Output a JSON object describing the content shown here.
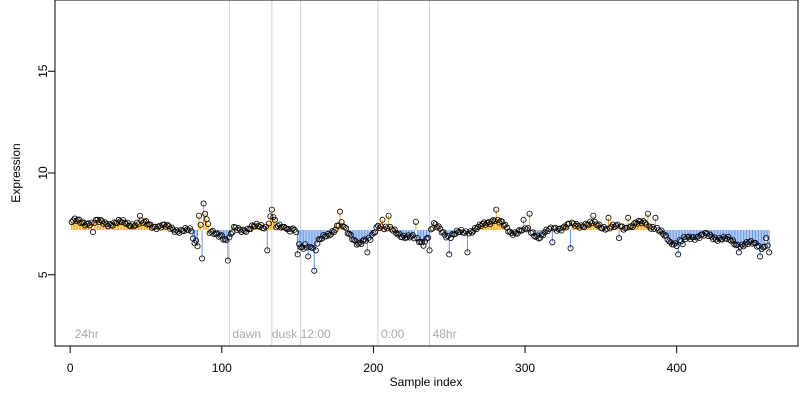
{
  "chart_data": {
    "type": "scatter",
    "title": "",
    "xlabel": "Sample index",
    "ylabel": "Expression",
    "xlim": [
      -10,
      480
    ],
    "ylim": [
      1.5,
      18.5
    ],
    "x_ticks": [
      0,
      100,
      200,
      300,
      400
    ],
    "y_ticks": [
      5,
      10,
      15
    ],
    "baseline": 7.2,
    "colors": {
      "point_stroke": "#000000",
      "point_fill": "#ffffff",
      "above_baseline": "#ffa500",
      "below_baseline": "#6495ed",
      "phase_line": "#d3d3d3",
      "phase_label": "#a9a9a9"
    },
    "phase_lines": [
      105,
      133,
      152,
      203,
      237
    ],
    "phase_labels": [
      {
        "x": 3,
        "text": "24hr"
      },
      {
        "x": 107,
        "text": "dawn"
      },
      {
        "x": 133,
        "text": "dusk"
      },
      {
        "x": 152,
        "text": "12:00"
      },
      {
        "x": 205,
        "text": "0:00"
      },
      {
        "x": 239,
        "text": "48hr"
      }
    ],
    "control_points": [
      [
        0,
        7.6
      ],
      [
        50,
        7.5
      ],
      [
        80,
        7.1
      ],
      [
        82,
        6.5
      ],
      [
        86,
        7.6
      ],
      [
        88,
        8.4
      ],
      [
        92,
        7.0
      ],
      [
        100,
        7.0
      ],
      [
        104,
        6.6
      ],
      [
        108,
        7.2
      ],
      [
        120,
        7.3
      ],
      [
        130,
        7.4
      ],
      [
        133,
        8.1
      ],
      [
        136,
        7.3
      ],
      [
        148,
        7.3
      ],
      [
        152,
        6.2
      ],
      [
        158,
        6.4
      ],
      [
        163,
        6.6
      ],
      [
        170,
        6.9
      ],
      [
        178,
        7.6
      ],
      [
        183,
        7.0
      ],
      [
        190,
        6.6
      ],
      [
        198,
        6.7
      ],
      [
        203,
        7.5
      ],
      [
        210,
        7.2
      ],
      [
        218,
        7.0
      ],
      [
        225,
        6.8
      ],
      [
        233,
        6.6
      ],
      [
        240,
        7.4
      ],
      [
        250,
        6.9
      ],
      [
        260,
        7.1
      ],
      [
        270,
        7.3
      ],
      [
        280,
        7.8
      ],
      [
        290,
        7.1
      ],
      [
        300,
        7.2
      ],
      [
        310,
        6.9
      ],
      [
        320,
        7.3
      ],
      [
        330,
        7.4
      ],
      [
        340,
        7.5
      ],
      [
        350,
        7.4
      ],
      [
        360,
        7.3
      ],
      [
        370,
        7.4
      ],
      [
        380,
        7.6
      ],
      [
        390,
        7.0
      ],
      [
        400,
        6.5
      ],
      [
        410,
        6.9
      ],
      [
        420,
        6.9
      ],
      [
        430,
        6.8
      ],
      [
        440,
        6.5
      ],
      [
        450,
        6.5
      ],
      [
        460,
        6.4
      ]
    ],
    "point_count": 461,
    "jitter_amplitude": 0.18,
    "notable_points": [
      [
        5,
        7.7
      ],
      [
        15,
        7.1
      ],
      [
        46,
        7.9
      ],
      [
        84,
        6.4
      ],
      [
        85,
        7.9
      ],
      [
        87,
        5.8
      ],
      [
        88,
        8.5
      ],
      [
        104,
        5.7
      ],
      [
        130,
        6.2
      ],
      [
        133,
        8.2
      ],
      [
        142,
        7.3
      ],
      [
        150,
        6.0
      ],
      [
        155,
        6.5
      ],
      [
        157,
        5.9
      ],
      [
        161,
        5.2
      ],
      [
        162,
        6.2
      ],
      [
        178,
        8.1
      ],
      [
        196,
        6.1
      ],
      [
        206,
        7.7
      ],
      [
        210,
        7.9
      ],
      [
        228,
        7.6
      ],
      [
        237,
        6.2
      ],
      [
        250,
        6.0
      ],
      [
        262,
        6.1
      ],
      [
        281,
        8.2
      ],
      [
        285,
        7.6
      ],
      [
        299,
        7.7
      ],
      [
        303,
        8.0
      ],
      [
        318,
        6.6
      ],
      [
        330,
        6.3
      ],
      [
        345,
        7.9
      ],
      [
        355,
        7.8
      ],
      [
        362,
        6.8
      ],
      [
        368,
        7.8
      ],
      [
        381,
        8.0
      ],
      [
        386,
        7.8
      ],
      [
        396,
        6.6
      ],
      [
        401,
        6.0
      ],
      [
        404,
        6.5
      ],
      [
        441,
        6.1
      ],
      [
        455,
        5.9
      ],
      [
        459,
        6.8
      ],
      [
        461,
        6.1
      ]
    ]
  }
}
